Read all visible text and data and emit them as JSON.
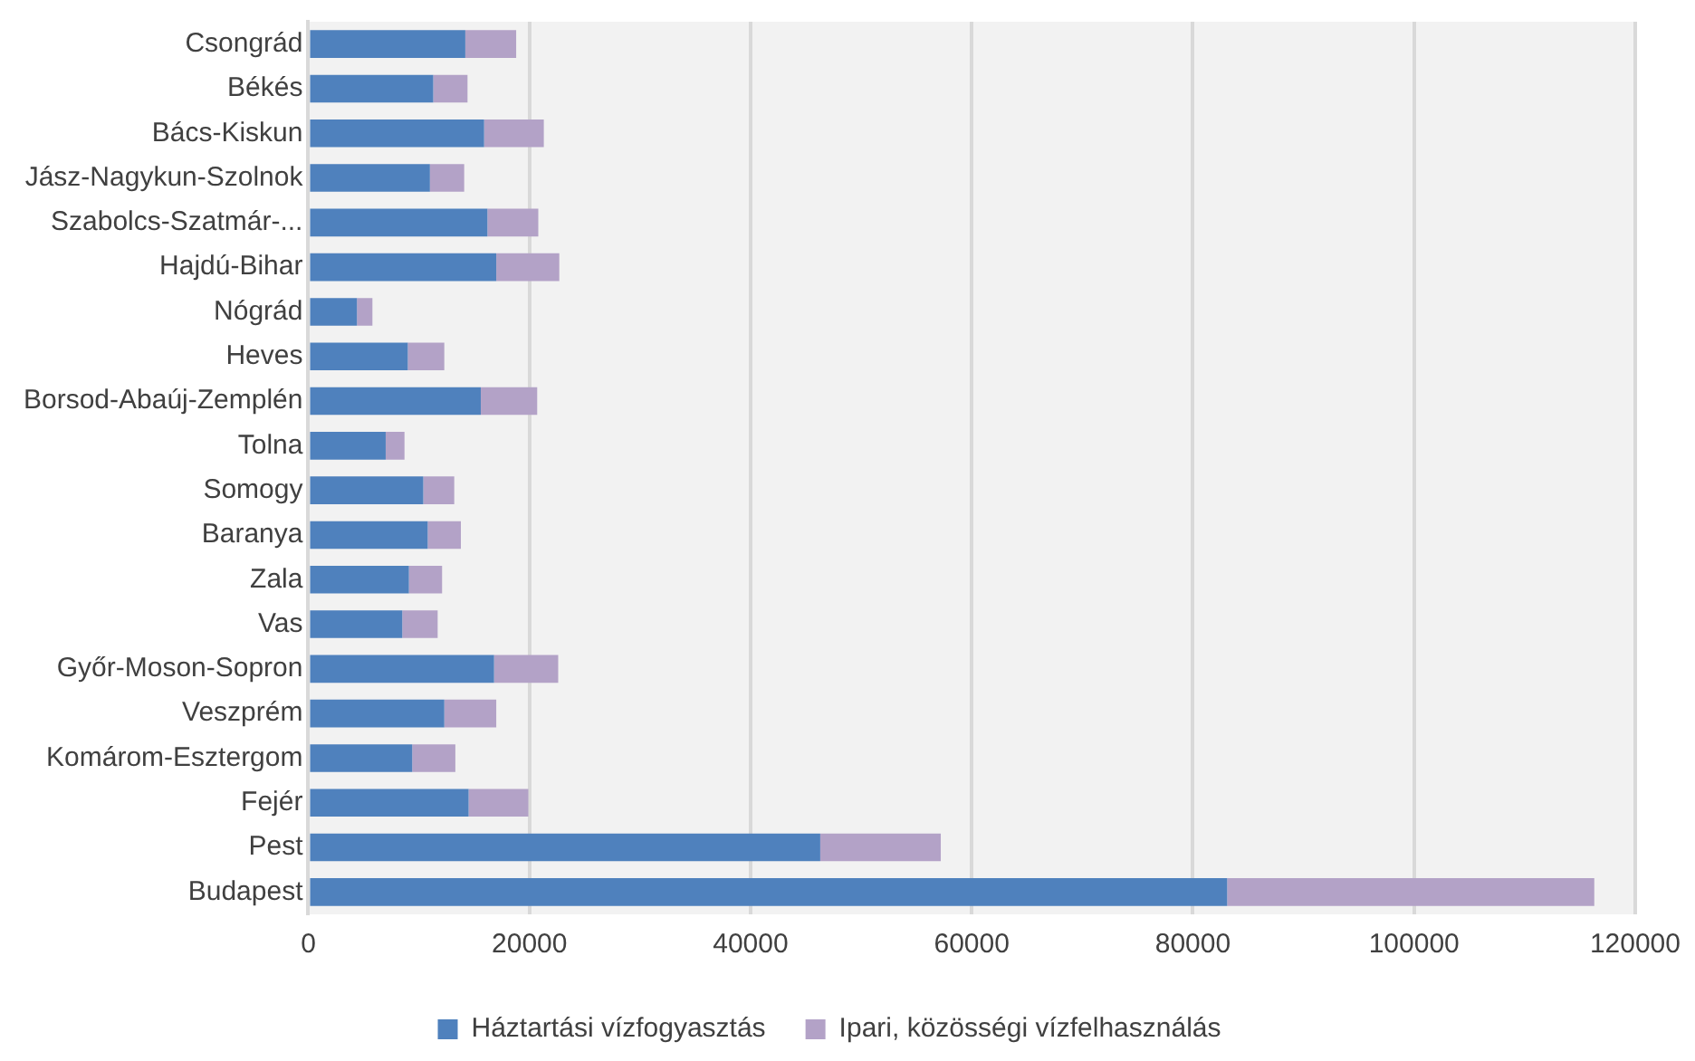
{
  "chart_data": {
    "type": "bar",
    "orientation": "horizontal",
    "stacked": true,
    "categories": [
      "Csongrád",
      "Békés",
      "Bács-Kiskun",
      "Jász-Nagykun-Szolnok",
      "Szabolcs-Szatmár-...",
      "Hajdú-Bihar",
      "Nógrád",
      "Heves",
      "Borsod-Abaúj-Zemplén",
      "Tolna",
      "Somogy",
      "Baranya",
      "Zala",
      "Vas",
      "Győr-Moson-Sopron",
      "Veszprém",
      "Komárom-Esztergom",
      "Fejér",
      "Pest",
      "Budapest"
    ],
    "series": [
      {
        "name": "Háztartási vízfogyasztás",
        "color": "#4f81bd",
        "values": [
          14200,
          11300,
          15900,
          11000,
          16200,
          17000,
          4400,
          9000,
          15600,
          7000,
          10400,
          10800,
          9100,
          8500,
          16800,
          12300,
          9400,
          14500,
          46300,
          83100
        ]
      },
      {
        "name": "Ipari, közösségi vízfelhasználás",
        "color": "#b3a2c7",
        "values": [
          4600,
          3100,
          5400,
          3100,
          4600,
          5700,
          1400,
          3300,
          5100,
          1700,
          2800,
          3000,
          3000,
          3200,
          5800,
          4700,
          3900,
          5400,
          10900,
          33200
        ]
      }
    ],
    "xlim": [
      0,
      120000
    ],
    "xticks": [
      0,
      20000,
      40000,
      60000,
      80000,
      100000,
      120000
    ],
    "grid": "x",
    "legend": "bottom"
  }
}
